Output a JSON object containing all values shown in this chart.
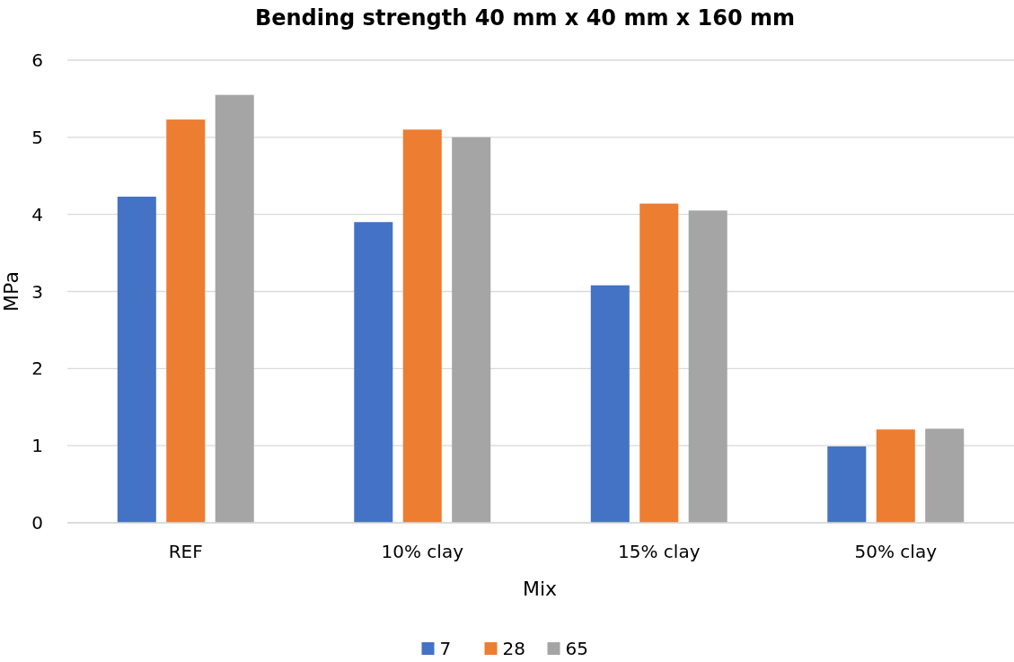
{
  "chart_data": {
    "type": "bar",
    "title": "Bending strength 40 mm x 40 mm x 160 mm",
    "xlabel": "Mix",
    "ylabel": "MPa",
    "categories": [
      "REF",
      "10% clay",
      "15% clay",
      "50% clay"
    ],
    "series": [
      {
        "name": "7",
        "color": "#4472c4",
        "values": [
          4.23,
          3.9,
          3.08,
          0.99
        ]
      },
      {
        "name": "28",
        "color": "#ed7d31",
        "values": [
          5.23,
          5.1,
          4.14,
          1.21
        ]
      },
      {
        "name": "65",
        "color": "#a5a5a5",
        "values": [
          5.55,
          5.0,
          4.05,
          1.22
        ]
      }
    ],
    "ylim": [
      0,
      6
    ],
    "yticks": [
      0,
      1,
      2,
      3,
      4,
      5,
      6
    ],
    "grid": "y",
    "legend": "bottom"
  }
}
